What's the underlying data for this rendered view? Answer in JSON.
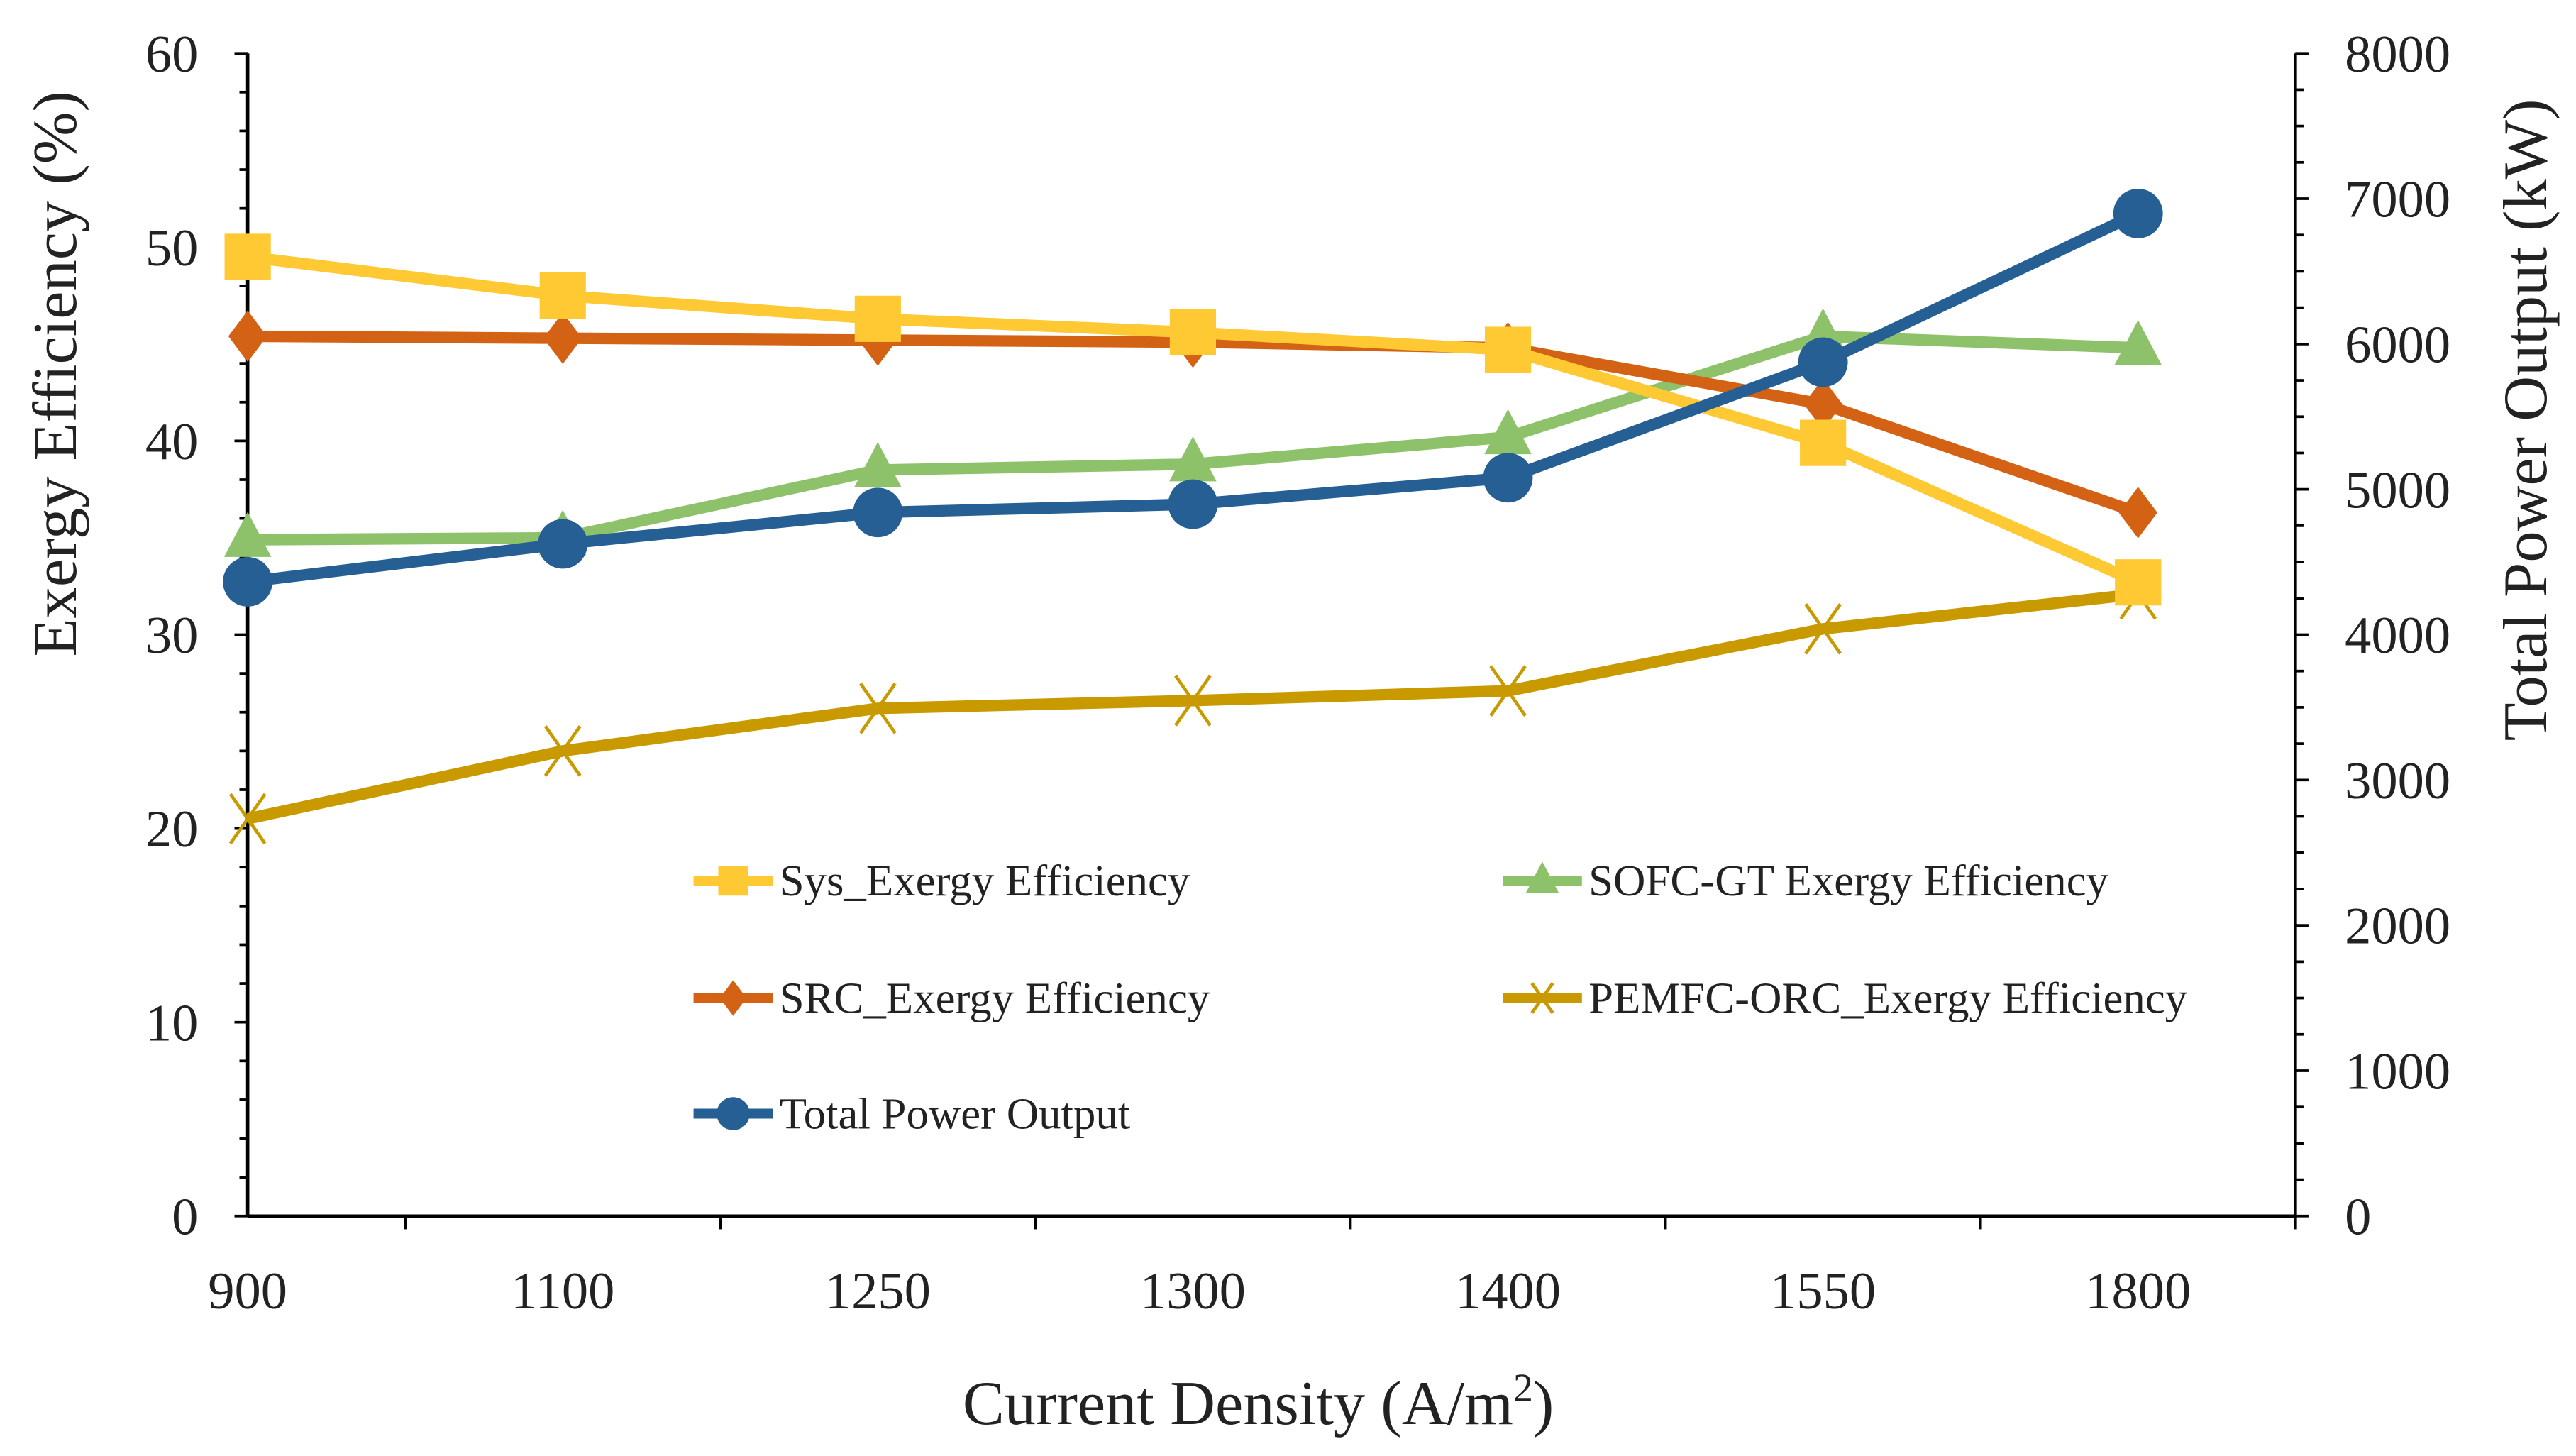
{
  "chart_data": {
    "type": "line",
    "title": "",
    "xlabel": "Current Density (A/m²)",
    "xlabel_main": "Current Density (A/m",
    "xlabel_sup": "2",
    "xlabel_end": ")",
    "ylabel": "Exergy Efficiency (%)",
    "y2label": "Total Power Output (kW)",
    "categories": [
      "900",
      "1100",
      "1250",
      "1300",
      "1400",
      "1550",
      "1800"
    ],
    "ylim": [
      0,
      60
    ],
    "yticks": [
      0,
      10,
      20,
      30,
      40,
      50,
      60
    ],
    "y2lim": [
      0,
      8000
    ],
    "y2ticks": [
      0,
      1000,
      2000,
      3000,
      4000,
      5000,
      6000,
      7000,
      8000
    ],
    "grid": false,
    "legend_placement": "inside-bottom-center",
    "series": [
      {
        "name": "Sys_Exergy Efficiency",
        "axis": "left",
        "marker": "square",
        "color": "#FFC933",
        "values": [
          49.5,
          47.5,
          46.3,
          45.6,
          44.7,
          39.9,
          32.7
        ]
      },
      {
        "name": "SOFC-GT Exergy Efficiency",
        "axis": "left",
        "marker": "triangle",
        "color": "#8DC26A",
        "values": [
          34.9,
          35.0,
          38.5,
          38.8,
          40.2,
          45.4,
          44.8
        ]
      },
      {
        "name": "SRC_Exergy Efficiency",
        "axis": "left",
        "marker": "diamond",
        "color": "#D46214",
        "values": [
          45.4,
          45.3,
          45.2,
          45.1,
          44.8,
          41.9,
          36.3
        ]
      },
      {
        "name": "PEMFC-ORC_Exergy Efficiency",
        "axis": "left",
        "marker": "x",
        "color": "#C99A00",
        "values": [
          20.5,
          24.0,
          26.2,
          26.6,
          27.1,
          30.3,
          32.1
        ]
      },
      {
        "name": "Total Power Output",
        "axis": "right",
        "marker": "circle",
        "color": "#265F93",
        "values": [
          4364,
          4625,
          4841,
          4898,
          5080,
          5875,
          6898
        ]
      }
    ]
  }
}
